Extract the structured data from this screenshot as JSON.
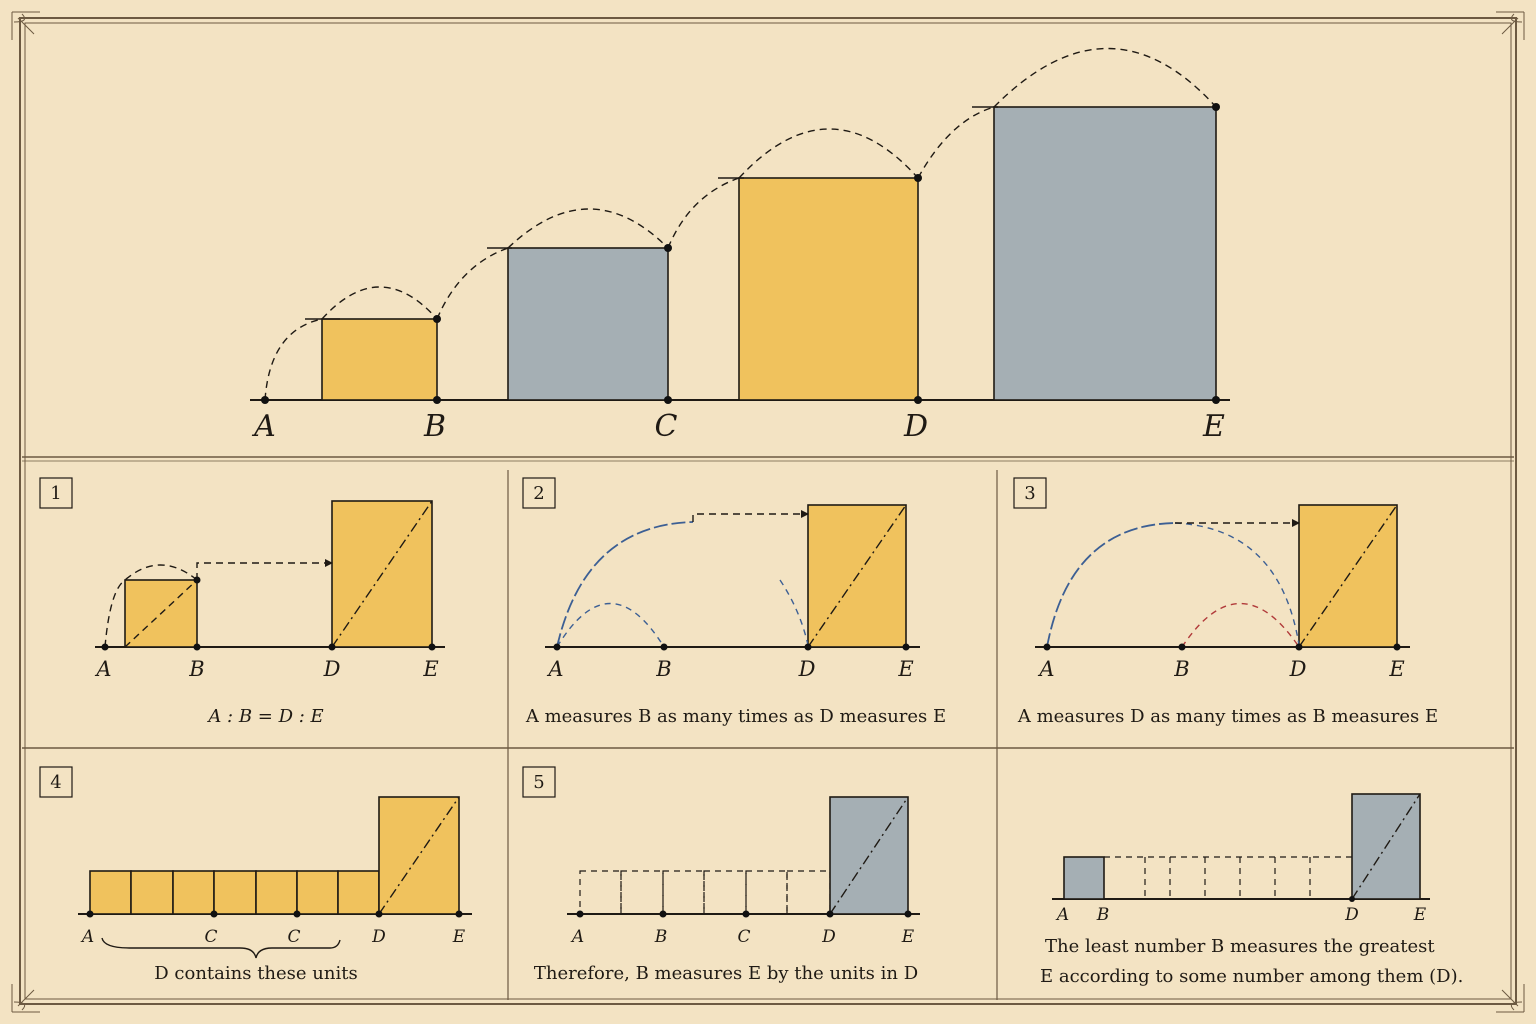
{
  "colors": {
    "paper": "#f3e3c3",
    "gold": "#f0c25d",
    "slate": "#a5afb4",
    "ink": "#1f1a14",
    "blue": "#3c5f94",
    "red": "#b13a3a"
  },
  "main": {
    "labels": [
      "A",
      "B",
      "C",
      "D",
      "E"
    ]
  },
  "panels": [
    {
      "number": "1",
      "labels": [
        "A",
        "B",
        "D",
        "E"
      ],
      "caption": "A : B = D : E"
    },
    {
      "number": "2",
      "labels": [
        "A",
        "B",
        "D",
        "E"
      ],
      "caption": "A measures B as many times as D measures E"
    },
    {
      "number": "3",
      "labels": [
        "A",
        "B",
        "D",
        "E"
      ],
      "caption": "A measures D as many times as B measures E"
    },
    {
      "number": "4",
      "labels": [
        "A",
        "C",
        "C",
        "D",
        "E"
      ],
      "caption": "D contains these units"
    },
    {
      "number": "5",
      "labels": [
        "A",
        "B",
        "C",
        "D",
        "E"
      ],
      "caption": "Therefore, B measures E by the units in D"
    },
    {
      "number": "",
      "labels": [
        "A",
        "B",
        "D",
        "E"
      ],
      "caption_line1": "The least number B measures the greatest",
      "caption_line2": "E according to some number among them (D)."
    }
  ]
}
